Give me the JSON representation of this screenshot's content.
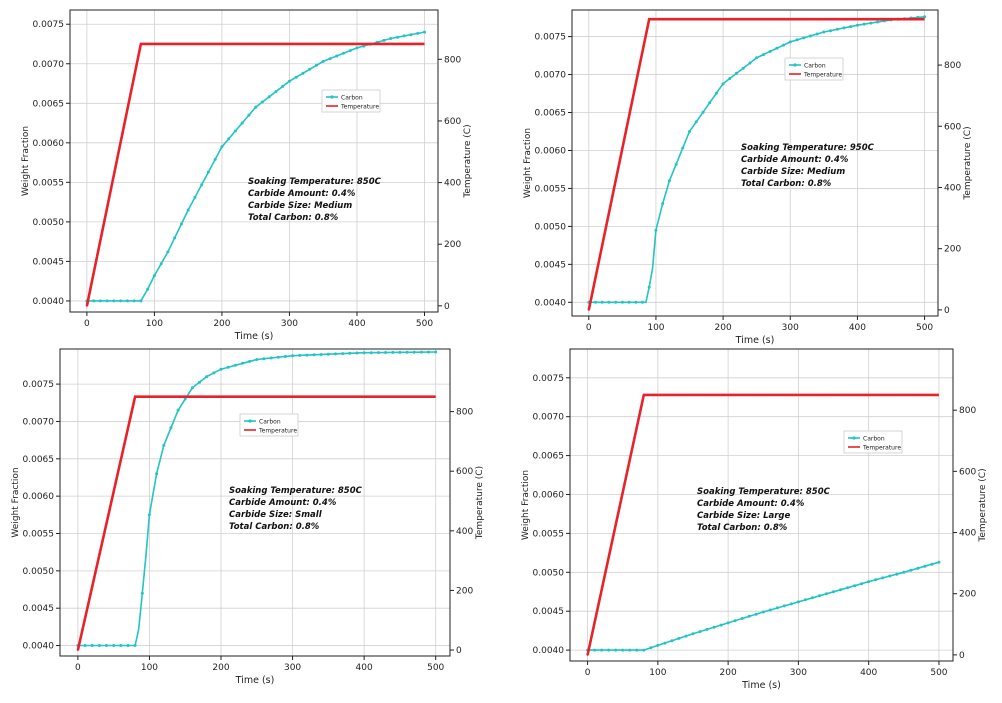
{
  "colors": {
    "carbon": "#22c4c4",
    "temperature": "#e8222a",
    "grid": "#d0d0d0",
    "axis": "#222222"
  },
  "chart_data": [
    {
      "type": "line",
      "xlabel": "Time (s)",
      "ylabel": "Weight Fraction",
      "y2label": "Temperature (C)",
      "xlim": [
        -25,
        520
      ],
      "ylim": [
        0.00386,
        0.00768
      ],
      "y2lim": [
        -20,
        960
      ],
      "xticks": [
        "0",
        "100",
        "200",
        "300",
        "400",
        "500"
      ],
      "yticks": [
        "0.0040",
        "0.0045",
        "0.0050",
        "0.0055",
        "0.0060",
        "0.0065",
        "0.0070",
        "0.0075"
      ],
      "y2ticks": [
        "0",
        "200",
        "400",
        "600",
        "800"
      ],
      "legend": [
        "Carbon",
        "Temperature"
      ],
      "annotation": [
        "Soaking Temperature: 850C",
        "Carbide Amount: 0.4%",
        "Carbide Size: Medium",
        "Total Carbon: 0.8%"
      ],
      "series": [
        {
          "name": "Carbon",
          "axis": "left",
          "x": [
            0,
            80,
            90,
            100,
            120,
            150,
            200,
            250,
            300,
            350,
            400,
            450,
            500
          ],
          "y": [
            0.004,
            0.004,
            0.00415,
            0.00432,
            0.00462,
            0.00515,
            0.00595,
            0.00645,
            0.00678,
            0.00703,
            0.0072,
            0.00732,
            0.0074
          ]
        },
        {
          "name": "Temperature",
          "axis": "right",
          "x": [
            0,
            80,
            500
          ],
          "y": [
            0,
            850,
            850
          ]
        }
      ]
    },
    {
      "type": "line",
      "xlabel": "Time (s)",
      "ylabel": "Weight Fraction",
      "y2label": "Temperature (C)",
      "xlim": [
        -25,
        520
      ],
      "ylim": [
        0.00382,
        0.00785
      ],
      "y2lim": [
        -20,
        980
      ],
      "xticks": [
        "0",
        "100",
        "200",
        "300",
        "400",
        "500"
      ],
      "yticks": [
        "0.0040",
        "0.0045",
        "0.0050",
        "0.0055",
        "0.0060",
        "0.0065",
        "0.0070",
        "0.0075"
      ],
      "y2ticks": [
        "0",
        "200",
        "400",
        "600",
        "800"
      ],
      "legend": [
        "Carbon",
        "Temperature"
      ],
      "annotation": [
        "Soaking Temperature: 950C",
        "Carbide Amount: 0.4%",
        "Carbide Size: Medium",
        "Total Carbon: 0.8%"
      ],
      "series": [
        {
          "name": "Carbon",
          "axis": "left",
          "x": [
            0,
            85,
            90,
            95,
            100,
            110,
            120,
            150,
            200,
            250,
            300,
            350,
            400,
            450,
            500
          ],
          "y": [
            0.004,
            0.004,
            0.0042,
            0.00445,
            0.00495,
            0.0053,
            0.0056,
            0.00625,
            0.00688,
            0.00722,
            0.00743,
            0.00756,
            0.00765,
            0.00772,
            0.00776
          ]
        },
        {
          "name": "Temperature",
          "axis": "right",
          "x": [
            0,
            90,
            500
          ],
          "y": [
            0,
            950,
            950
          ]
        }
      ]
    },
    {
      "type": "line",
      "xlabel": "Time (s)",
      "ylabel": "Weight Fraction",
      "y2label": "Temperature (C)",
      "xlim": [
        -25,
        520
      ],
      "ylim": [
        0.00386,
        0.00797
      ],
      "y2lim": [
        -20,
        1010
      ],
      "xticks": [
        "0",
        "100",
        "200",
        "300",
        "400",
        "500"
      ],
      "yticks": [
        "0.0040",
        "0.0045",
        "0.0050",
        "0.0055",
        "0.0060",
        "0.0065",
        "0.0070",
        "0.0075"
      ],
      "y2ticks": [
        "0",
        "200",
        "400",
        "600",
        "800"
      ],
      "legend": [
        "Carbon",
        "Temperature"
      ],
      "annotation": [
        "Soaking Temperature: 850C",
        "Carbide Amount: 0.4%",
        "Carbide Size: Small",
        "Total Carbon: 0.8%"
      ],
      "series": [
        {
          "name": "Carbon",
          "axis": "left",
          "x": [
            0,
            80,
            85,
            90,
            95,
            100,
            110,
            120,
            140,
            160,
            180,
            200,
            250,
            300,
            400,
            500
          ],
          "y": [
            0.004,
            0.004,
            0.00422,
            0.0047,
            0.0052,
            0.00575,
            0.0063,
            0.00668,
            0.00715,
            0.00745,
            0.0076,
            0.0077,
            0.00783,
            0.00788,
            0.00792,
            0.00793
          ]
        },
        {
          "name": "Temperature",
          "axis": "right",
          "x": [
            0,
            80,
            500
          ],
          "y": [
            0,
            850,
            850
          ]
        }
      ]
    },
    {
      "type": "line",
      "xlabel": "Time (s)",
      "ylabel": "Weight Fraction",
      "y2label": "Temperature (C)",
      "xlim": [
        -25,
        520
      ],
      "ylim": [
        0.00386,
        0.00787
      ],
      "y2lim": [
        -20,
        1000
      ],
      "xticks": [
        "0",
        "100",
        "200",
        "300",
        "400",
        "500"
      ],
      "yticks": [
        "0.0040",
        "0.0045",
        "0.0050",
        "0.0055",
        "0.0060",
        "0.0065",
        "0.0070",
        "0.0075"
      ],
      "y2ticks": [
        "0",
        "200",
        "400",
        "600",
        "800"
      ],
      "legend": [
        "Carbon",
        "Temperature"
      ],
      "annotation": [
        "Soaking Temperature: 850C",
        "Carbide Amount: 0.4%",
        "Carbide Size: Large",
        "Total Carbon: 0.8%"
      ],
      "series": [
        {
          "name": "Carbon",
          "axis": "left",
          "x": [
            0,
            80,
            100,
            150,
            200,
            250,
            300,
            350,
            400,
            450,
            500
          ],
          "y": [
            0.004,
            0.004,
            0.00406,
            0.00421,
            0.00435,
            0.00449,
            0.00462,
            0.00475,
            0.00488,
            0.005,
            0.00513
          ]
        },
        {
          "name": "Temperature",
          "axis": "right",
          "x": [
            0,
            80,
            500
          ],
          "y": [
            0,
            850,
            850
          ]
        }
      ]
    }
  ]
}
